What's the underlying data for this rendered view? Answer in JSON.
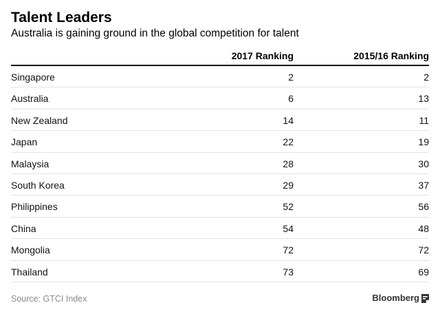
{
  "title": "Talent Leaders",
  "subtitle": "Australia is gaining ground in the global competition for talent",
  "chart_data": {
    "type": "table",
    "columns": [
      "",
      "2017 Ranking",
      "2015/16 Ranking"
    ],
    "rows": [
      {
        "country": "Singapore",
        "rank_2017": "2",
        "rank_2015_16": "2"
      },
      {
        "country": "Australia",
        "rank_2017": "6",
        "rank_2015_16": "13"
      },
      {
        "country": "New Zealand",
        "rank_2017": "14",
        "rank_2015_16": "11"
      },
      {
        "country": "Japan",
        "rank_2017": "22",
        "rank_2015_16": "19"
      },
      {
        "country": "Malaysia",
        "rank_2017": "28",
        "rank_2015_16": "30"
      },
      {
        "country": "South Korea",
        "rank_2017": "29",
        "rank_2015_16": "37"
      },
      {
        "country": "Philippines",
        "rank_2017": "52",
        "rank_2015_16": "56"
      },
      {
        "country": "China",
        "rank_2017": "54",
        "rank_2015_16": "48"
      },
      {
        "country": "Mongolia",
        "rank_2017": "72",
        "rank_2015_16": "72"
      },
      {
        "country": "Thailand",
        "rank_2017": "73",
        "rank_2015_16": "69"
      }
    ]
  },
  "footer": {
    "source": "Source: GTCI Index",
    "brand": "Bloomberg",
    "brand_icon": "bloomberg-logo-icon"
  },
  "colors": {
    "text": "#000000",
    "footer_text": "#8a8a8a",
    "row_divider": "#e3e3e3"
  }
}
